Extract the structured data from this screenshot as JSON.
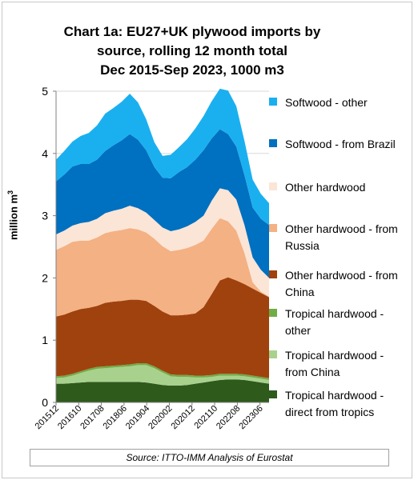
{
  "chart_data": {
    "type": "area",
    "stacked": true,
    "title_lines": [
      "Chart 1a: EU27+UK plywood imports by",
      "source, rolling 12 month total",
      "Dec 2015-Sep 2023, 1000 m3"
    ],
    "ylabel": "million m",
    "ylabel_superscript": "3",
    "ylim": [
      0,
      5
    ],
    "yticks": [
      "0",
      "1",
      "2",
      "3",
      "4",
      "5"
    ],
    "xticks": [
      "201512",
      "201610",
      "201708",
      "201806",
      "201904",
      "202002",
      "202012",
      "202110",
      "202208",
      "202306"
    ],
    "grid": "horizontal",
    "legend_position": "right",
    "x": [
      "201512",
      "201604",
      "201608",
      "201612",
      "201704",
      "201708",
      "201712",
      "201804",
      "201808",
      "201812",
      "201904",
      "201908",
      "201912",
      "202004",
      "202008",
      "202012",
      "202104",
      "202108",
      "202112",
      "202204",
      "202206",
      "202208",
      "202210",
      "202212",
      "202304",
      "202306",
      "202309"
    ],
    "series": [
      {
        "name": "Tropical hardwood - direct from tropics",
        "color": "#2e5a1c",
        "values": [
          0.3,
          0.3,
          0.31,
          0.32,
          0.33,
          0.33,
          0.33,
          0.33,
          0.33,
          0.33,
          0.33,
          0.32,
          0.3,
          0.28,
          0.27,
          0.27,
          0.28,
          0.3,
          0.32,
          0.34,
          0.36,
          0.37,
          0.37,
          0.36,
          0.34,
          0.32,
          0.3
        ]
      },
      {
        "name": "Tropical hardwood - from China",
        "color": "#a9d18e",
        "values": [
          0.09,
          0.1,
          0.12,
          0.15,
          0.18,
          0.21,
          0.22,
          0.23,
          0.24,
          0.25,
          0.27,
          0.28,
          0.25,
          0.2,
          0.15,
          0.14,
          0.13,
          0.1,
          0.08,
          0.07,
          0.07,
          0.06,
          0.06,
          0.06,
          0.06,
          0.06,
          0.06
        ]
      },
      {
        "name": "Tropical hardwood - other",
        "color": "#70ad47",
        "values": [
          0.03,
          0.03,
          0.03,
          0.03,
          0.03,
          0.03,
          0.03,
          0.03,
          0.03,
          0.03,
          0.03,
          0.03,
          0.03,
          0.03,
          0.03,
          0.03,
          0.03,
          0.03,
          0.03,
          0.03,
          0.03,
          0.03,
          0.03,
          0.03,
          0.03,
          0.03,
          0.03
        ]
      },
      {
        "name": "Other hardwood - from China",
        "color": "#a0420e",
        "values": [
          0.96,
          0.98,
          1.0,
          1.0,
          0.98,
          0.98,
          1.02,
          1.03,
          1.03,
          1.04,
          1.02,
          1.0,
          0.97,
          0.95,
          0.95,
          0.96,
          0.97,
          1.0,
          1.1,
          1.3,
          1.5,
          1.55,
          1.5,
          1.45,
          1.4,
          1.35,
          1.3
        ]
      },
      {
        "name": "Other hardwood - from Russia",
        "color": "#f4b183",
        "values": [
          1.07,
          1.1,
          1.12,
          1.1,
          1.08,
          1.1,
          1.12,
          1.13,
          1.14,
          1.15,
          1.13,
          1.1,
          1.08,
          1.05,
          1.03,
          1.05,
          1.07,
          1.1,
          1.07,
          1.05,
          1.0,
          0.9,
          0.8,
          0.5,
          0.1,
          0.02,
          0.01
        ]
      },
      {
        "name": "Other hardwood",
        "color": "#fbe5d6",
        "values": [
          0.25,
          0.25,
          0.26,
          0.28,
          0.3,
          0.3,
          0.32,
          0.33,
          0.34,
          0.36,
          0.34,
          0.32,
          0.3,
          0.3,
          0.32,
          0.33,
          0.35,
          0.37,
          0.4,
          0.45,
          0.48,
          0.5,
          0.5,
          0.45,
          0.4,
          0.35,
          0.3
        ]
      },
      {
        "name": "Softwood - from Brazil",
        "color": "#0070c0",
        "values": [
          0.85,
          0.9,
          0.95,
          0.95,
          0.93,
          0.95,
          1.0,
          1.05,
          1.1,
          1.15,
          1.1,
          1.0,
          0.85,
          0.8,
          0.85,
          0.92,
          0.95,
          1.0,
          1.05,
          1.0,
          0.95,
          0.9,
          0.85,
          0.8,
          0.8,
          0.82,
          0.85
        ]
      },
      {
        "name": "Softwood - other",
        "color": "#1ab0f0",
        "values": [
          0.35,
          0.38,
          0.4,
          0.45,
          0.5,
          0.55,
          0.6,
          0.6,
          0.62,
          0.65,
          0.6,
          0.5,
          0.4,
          0.35,
          0.38,
          0.4,
          0.45,
          0.5,
          0.55,
          0.6,
          0.65,
          0.7,
          0.65,
          0.55,
          0.45,
          0.4,
          0.35
        ]
      }
    ],
    "source": "Source: ITTO-IMM Analysis of Eurostat"
  }
}
